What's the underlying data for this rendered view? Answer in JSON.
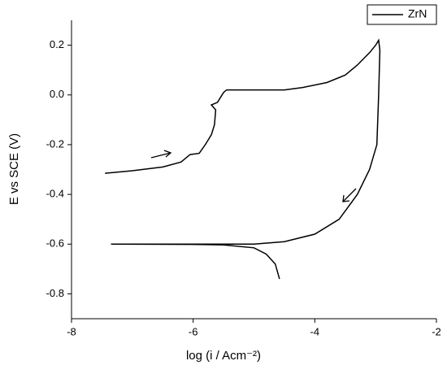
{
  "chart_data": {
    "type": "line",
    "xlabel": "log (i / Acm⁻²)",
    "ylabel": "E vs SCE (V)",
    "xlim": [
      -8,
      -2
    ],
    "xticks": [
      -8,
      -6,
      -4,
      -2
    ],
    "ylim": [
      -0.9,
      0.3
    ],
    "yticks": [
      -0.8,
      -0.6,
      -0.4,
      -0.2,
      {
        "value": 0,
        "label": "0.0"
      },
      0.2
    ],
    "legend": "top-right",
    "series": [
      {
        "name": "ZrN",
        "color": "#000000",
        "x": [
          -7.45,
          -7.0,
          -6.5,
          -6.2,
          -6.05,
          -5.9,
          -5.8,
          -5.7,
          -5.65,
          -5.63,
          -5.7,
          -5.6,
          -5.55,
          -5.5,
          -5.45,
          -5.0,
          -4.5,
          -4.2,
          -3.8,
          -3.5,
          -3.3,
          -3.1,
          -3.0,
          -2.95,
          -2.93,
          -2.95,
          -2.98,
          -3.1,
          -3.3,
          -3.6,
          -4.0,
          -4.5,
          -5.0,
          -6.0,
          -7.35,
          -6.0,
          -5.5,
          -5.0,
          -4.8,
          -4.65,
          -4.58
        ],
        "values": [
          -0.315,
          -0.305,
          -0.29,
          -0.27,
          -0.24,
          -0.235,
          -0.2,
          -0.16,
          -0.12,
          -0.06,
          -0.04,
          -0.03,
          -0.01,
          0.01,
          0.02,
          0.02,
          0.02,
          0.03,
          0.05,
          0.08,
          0.12,
          0.17,
          0.2,
          0.22,
          0.18,
          0.0,
          -0.2,
          -0.3,
          -0.4,
          -0.5,
          -0.56,
          -0.59,
          -0.6,
          -0.6,
          -0.6,
          -0.601,
          -0.603,
          -0.615,
          -0.64,
          -0.68,
          -0.74
        ]
      }
    ]
  }
}
